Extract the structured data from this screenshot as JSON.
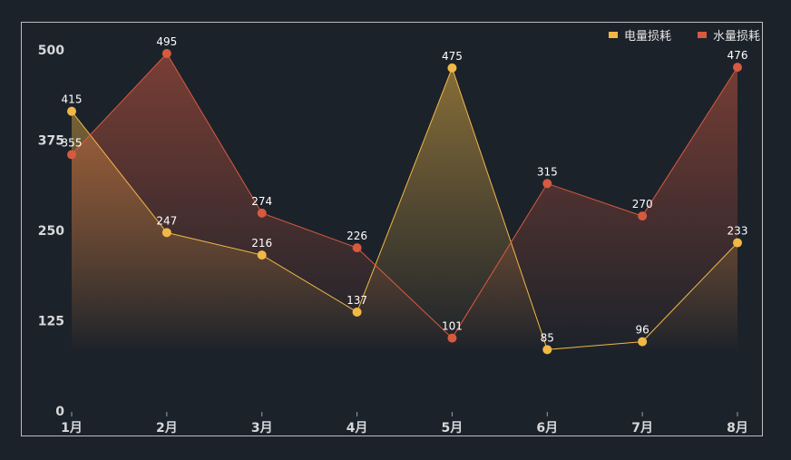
{
  "chart_data": {
    "type": "area",
    "title": "",
    "xlabel": "",
    "ylabel": "",
    "categories": [
      "1月",
      "2月",
      "3月",
      "4月",
      "5月",
      "6月",
      "7月",
      "8月"
    ],
    "ylim": [
      0,
      500
    ],
    "yticks": [
      0,
      125,
      250,
      375,
      500
    ],
    "grid": false,
    "legend_position": "top-right",
    "series": [
      {
        "name": "电量损耗",
        "color": "#f1b845",
        "values": [
          415,
          247,
          216,
          137,
          475,
          85,
          96,
          233
        ]
      },
      {
        "name": "水量损耗",
        "color": "#d65a40",
        "values": [
          355,
          495,
          274,
          226,
          101,
          315,
          270,
          476
        ]
      }
    ]
  }
}
